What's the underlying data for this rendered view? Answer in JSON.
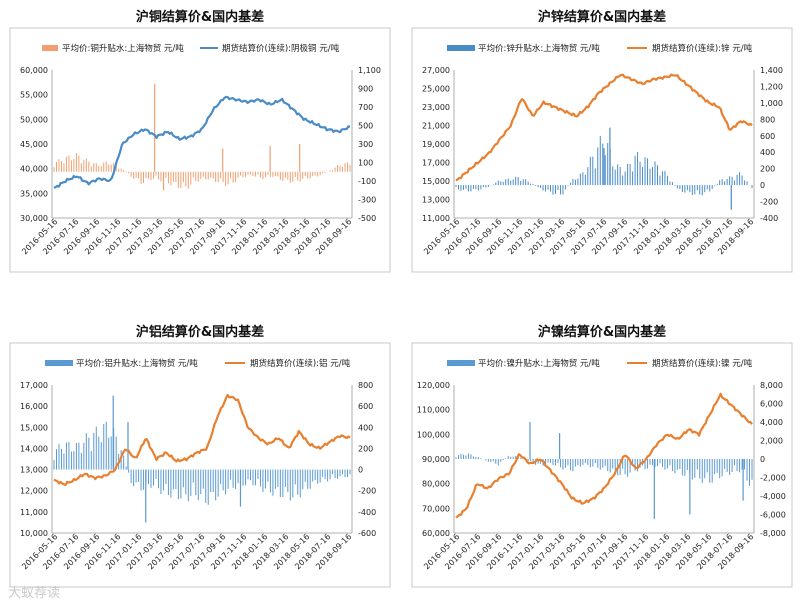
{
  "watermark": "大蚁荐读",
  "chart_data": [
    {
      "type": "bar+line",
      "title": "沪铜结算价&国内基差",
      "bar_series": {
        "name": "平均价:铜升贴水:上海物贸  元/吨",
        "color": "#f0a070"
      },
      "line_series": {
        "name": "期货结算价(连续):阴极铜  元/吨",
        "color": "#4a8cc6"
      },
      "left_axis": {
        "min": 30000,
        "max": 60000,
        "ticks": [
          "60,000",
          "55,000",
          "50,000",
          "45,000",
          "40,000",
          "35,000",
          "30,000"
        ]
      },
      "right_axis": {
        "min": -500,
        "max": 1100,
        "ticks": [
          "1,100",
          "900",
          "700",
          "500",
          "300",
          "100",
          "-100",
          "-300",
          "-500"
        ]
      },
      "x_labels": [
        "2016-05-16",
        "2016-07-16",
        "2016-09-16",
        "2016-11-16",
        "2017-01-16",
        "2017-03-16",
        "2017-05-16",
        "2017-07-16",
        "2017-09-16",
        "2017-11-16",
        "2018-01-16",
        "2018-03-16",
        "2018-05-16",
        "2018-07-16",
        "2018-09-16"
      ],
      "line_points": [
        36000,
        37500,
        38500,
        37000,
        38000,
        37500,
        45000,
        47000,
        48000,
        46500,
        47500,
        46000,
        46500,
        48000,
        52000,
        54500,
        54000,
        53500,
        54000,
        53000,
        54000,
        52000,
        50000,
        49000,
        48000,
        47500,
        48500
      ],
      "bar_points": [
        80,
        120,
        150,
        100,
        60,
        90,
        40,
        -40,
        -100,
        -60,
        -80,
        -120,
        -150,
        -80,
        -60,
        -90,
        -120,
        -50,
        -30,
        -60,
        -40,
        -80,
        -90,
        -60,
        -40,
        0,
        60,
        80
      ],
      "bar_spikes": [
        [
          0.34,
          950
        ],
        [
          0.37,
          -200
        ],
        [
          0.57,
          250
        ],
        [
          0.73,
          280
        ],
        [
          0.83,
          300
        ]
      ]
    },
    {
      "type": "bar+line",
      "title": "沪锌结算价&国内基差",
      "bar_series": {
        "name": "平均价:锌升贴水:上海物贸  元/吨",
        "color": "#4a8cc6"
      },
      "line_series": {
        "name": "期货结算价(连续):锌  元/吨",
        "color": "#e88030"
      },
      "left_axis": {
        "min": 11000,
        "max": 27000,
        "ticks": [
          "27,000",
          "25,000",
          "23,000",
          "21,000",
          "19,000",
          "17,000",
          "15,000",
          "13,000",
          "11,000"
        ]
      },
      "right_axis": {
        "min": -400,
        "max": 1400,
        "ticks": [
          "1,400",
          "1,200",
          "1,000",
          "800",
          "600",
          "400",
          "200",
          "0",
          "-200",
          "-400"
        ]
      },
      "x_labels": [
        "2016-05-16",
        "2016-07-16",
        "2016-09-16",
        "2016-11-16",
        "2017-01-16",
        "2017-03-16",
        "2017-05-16",
        "2017-07-16",
        "2017-09-16",
        "2017-11-16",
        "2018-01-16",
        "2018-03-16",
        "2018-05-16",
        "2018-07-16",
        "2018-09-16"
      ],
      "line_points": [
        15000,
        16000,
        17000,
        18000,
        19500,
        21000,
        24000,
        22000,
        23500,
        23000,
        22500,
        22000,
        23000,
        24500,
        25500,
        26500,
        26000,
        25500,
        26000,
        26200,
        26500,
        25500,
        24500,
        23500,
        23000,
        20500,
        21500,
        21000
      ],
      "bar_points": [
        -40,
        -60,
        -50,
        -20,
        40,
        60,
        80,
        30,
        -40,
        -80,
        -100,
        50,
        120,
        300,
        500,
        200,
        150,
        300,
        250,
        200,
        100,
        -50,
        -80,
        -100,
        -60,
        50,
        80,
        120,
        -40
      ],
      "bar_spikes": [
        [
          0.52,
          700
        ],
        [
          0.5,
          450
        ],
        [
          0.93,
          -300
        ]
      ]
    },
    {
      "type": "bar+line",
      "title": "沪铝结算价&国内基差",
      "bar_series": {
        "name": "平均价:铝升贴水:上海物贸  元/吨",
        "color": "#5a9ad0"
      },
      "line_series": {
        "name": "期货结算价(连续):铝  元/吨",
        "color": "#e88030"
      },
      "left_axis": {
        "min": 10000,
        "max": 17000,
        "ticks": [
          "17,000",
          "16,000",
          "15,000",
          "14,000",
          "13,000",
          "12,000",
          "11,000",
          "10,000"
        ]
      },
      "right_axis": {
        "min": -600,
        "max": 800,
        "ticks": [
          "800",
          "600",
          "400",
          "200",
          "0",
          "-200",
          "-400",
          "-600"
        ]
      },
      "x_labels": [
        "2016-05-16",
        "2016-07-16",
        "2016-09-16",
        "2016-11-16",
        "2017-01-16",
        "2017-03-16",
        "2017-05-16",
        "2017-07-16",
        "2017-09-16",
        "2017-11-16",
        "2018-01-16",
        "2018-03-16",
        "2018-05-16",
        "2018-07-16",
        "2018-09-16"
      ],
      "line_points": [
        12500,
        12300,
        12500,
        12800,
        12600,
        12700,
        13000,
        14000,
        13500,
        14500,
        13500,
        13800,
        13400,
        13500,
        13800,
        14000,
        15500,
        16500,
        16300,
        15000,
        14500,
        14200,
        14500,
        14000,
        14800,
        14200,
        14000,
        14300,
        14600,
        14500
      ],
      "bar_points": [
        150,
        200,
        180,
        250,
        300,
        350,
        200,
        -100,
        -150,
        -120,
        -180,
        -200,
        -220,
        -200,
        -250,
        -200,
        -150,
        -120,
        -100,
        -150,
        -180,
        -200,
        -220,
        -150,
        -100,
        -80,
        -60,
        -50
      ],
      "bar_spikes": [
        [
          0.2,
          700
        ],
        [
          0.25,
          450
        ],
        [
          0.31,
          -500
        ],
        [
          0.63,
          -350
        ]
      ]
    },
    {
      "type": "bar+line",
      "title": "沪镍结算价&国内基差",
      "bar_series": {
        "name": "平均价:镍升贴水:上海物贸  元/吨",
        "color": "#5a9ad0"
      },
      "line_series": {
        "name": "期货结算价(连续):镍  元/吨",
        "color": "#e88030"
      },
      "left_axis": {
        "min": 60000,
        "max": 120000,
        "ticks": [
          "120,000",
          "110,000",
          "100,000",
          "90,000",
          "80,000",
          "70,000",
          "60,000"
        ]
      },
      "right_axis": {
        "min": -8000,
        "max": 8000,
        "ticks": [
          "8,000",
          "6,000",
          "4,000",
          "2,000",
          "0",
          "-2,000",
          "-4,000",
          "-6,000",
          "-8,000"
        ]
      },
      "x_labels": [
        "2016-05-16",
        "2016-07-16",
        "2016-09-16",
        "2016-11-16",
        "2017-01-16",
        "2017-03-16",
        "2017-05-16",
        "2017-07-16",
        "2017-09-16",
        "2017-11-16",
        "2018-01-16",
        "2018-03-16",
        "2018-05-16",
        "2018-07-16",
        "2018-09-16"
      ],
      "line_points": [
        66000,
        70000,
        80000,
        78000,
        82000,
        84000,
        92000,
        88000,
        90000,
        85000,
        80000,
        74000,
        72000,
        74000,
        78000,
        84000,
        92000,
        86000,
        90000,
        96000,
        100000,
        98000,
        102000,
        100000,
        108000,
        116000,
        112000,
        108000,
        104000
      ],
      "bar_points": [
        300,
        500,
        200,
        -200,
        -500,
        300,
        200,
        -300,
        -600,
        -400,
        -800,
        -1000,
        -500,
        -700,
        -900,
        -1200,
        -1500,
        -1000,
        -800,
        -600,
        -900,
        -1200,
        -1500,
        -1800,
        -2000,
        -1500,
        -1200,
        -1000,
        -2500
      ],
      "bar_spikes": [
        [
          0.25,
          4000
        ],
        [
          0.35,
          2800
        ],
        [
          0.67,
          -6500
        ],
        [
          0.79,
          -6000
        ],
        [
          0.97,
          -4500
        ]
      ]
    }
  ]
}
